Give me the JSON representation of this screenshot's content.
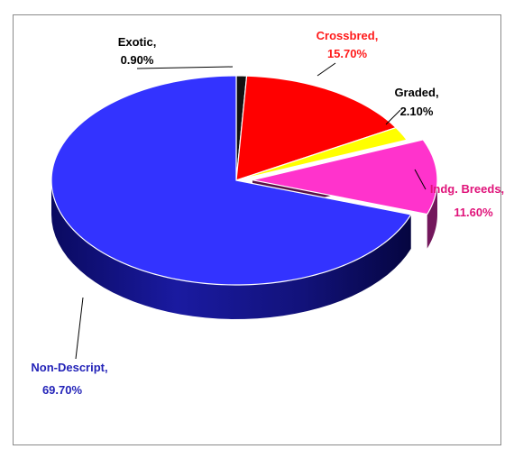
{
  "chart_data": {
    "type": "pie",
    "title": "",
    "slices": [
      {
        "label": "Exotic,",
        "value_text": "0.90%",
        "value": 0.9,
        "color": "#111111",
        "label_color": "#000000"
      },
      {
        "label": "Crossbred,",
        "value_text": "15.70%",
        "value": 15.7,
        "color": "#ff0000",
        "label_color": "#ff1a1a"
      },
      {
        "label": "Graded,",
        "value_text": "2.10%",
        "value": 2.1,
        "color": "#ffff00",
        "label_color": "#000000"
      },
      {
        "label": "Indg. Breeds,",
        "value_text": "11.60%",
        "value": 11.6,
        "color": "#ff33cc",
        "label_color": "#e0137a"
      },
      {
        "label": "Non-Descript,",
        "value_text": "69.70%",
        "value": 69.7,
        "color": "#3333ff",
        "label_color": "#2323b8"
      }
    ],
    "exploded": [
      "Indg. Breeds,"
    ],
    "legend": "none"
  }
}
